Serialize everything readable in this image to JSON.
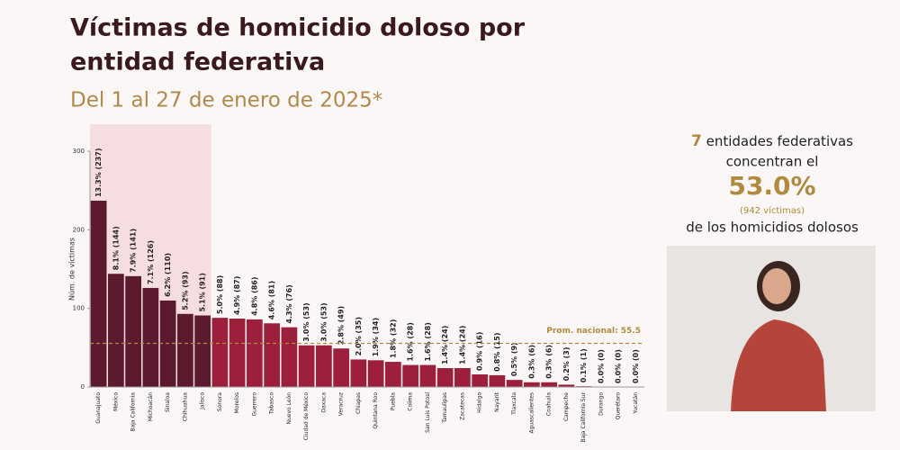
{
  "chart_data": {
    "type": "bar",
    "title_line1": "Víctimas de homicidio doloso por",
    "title_line2": "entidad federativa",
    "subtitle": "Del 1 al 27 de enero de 2025*",
    "y_label": "Núm. de víctimas",
    "categories": [
      "Guanajuato",
      "México",
      "Baja California",
      "Michoacán",
      "Sinaloa",
      "Chihuahua",
      "Jalisco",
      "Sonora",
      "Morelos",
      "Guerrero",
      "Tabasco",
      "Nuevo León",
      "Ciudad de México",
      "Oaxaca",
      "Veracruz",
      "Chiapas",
      "Quintana Roo",
      "Puebla",
      "Colima",
      "San Luis Potosí",
      "Tamaulipas",
      "Zacatecas",
      "Hidalgo",
      "Nayarit",
      "Tlaxcala",
      "Aguascalientes",
      "Coahuila",
      "Campeche",
      "Baja California Sur",
      "Durango",
      "Querétaro",
      "Yucatán"
    ],
    "values": [
      237,
      144,
      141,
      126,
      110,
      93,
      91,
      88,
      87,
      86,
      81,
      76,
      53,
      53,
      49,
      35,
      34,
      32,
      28,
      28,
      24,
      24,
      16,
      15,
      9,
      6,
      6,
      3,
      1,
      0,
      0,
      0
    ],
    "value_labels": [
      "13.3% (237)",
      "8.1% (144)",
      "7.9% (141)",
      "7.1% (126)",
      "6.2% (110)",
      "5.2% (93)",
      "5.1% (91)",
      "5.0% (88)",
      "4.9% (87)",
      "4.8% (86)",
      "4.6% (81)",
      "4.3% (76)",
      "3.0% (53)",
      "3.0% (53)",
      "2.8% (49)",
      "2.0% (35)",
      "1.9% (34)",
      "1.8% (32)",
      "1.6% (28)",
      "1.6% (28)",
      "1.4% (24)",
      "1.4% (24)",
      "0.9% (16)",
      "0.8% (15)",
      "0.5% (9)",
      "0.3% (6)",
      "0.3% (6)",
      "0.2% (3)",
      "0.1% (1)",
      "0.0% (0)",
      "0.0% (0)",
      "0.0% (0)"
    ],
    "colors": [
      "#5c1a2e",
      "#5c1a2e",
      "#5c1a2e",
      "#5c1a2e",
      "#5c1a2e",
      "#5c1a2e",
      "#5c1a2e",
      "#9c1f3c",
      "#9c1f3c",
      "#9c1f3c",
      "#9c1f3c",
      "#9c1f3c",
      "#9c1f3c",
      "#9c1f3c",
      "#9c1f3c",
      "#9c1f3c",
      "#9c1f3c",
      "#9c1f3c",
      "#9c1f3c",
      "#9c1f3c",
      "#9c1f3c",
      "#9c1f3c",
      "#9c1f3c",
      "#9c1f3c",
      "#9c1f3c",
      "#9c1f3c",
      "#9c1f3c",
      "#9c1f3c",
      "#9c1f3c",
      "#9c1f3c",
      "#9c1f3c",
      "#9c1f3c"
    ],
    "highlight_color": "#f6dde0",
    "ylim": [
      0,
      300
    ],
    "yticks": [
      0,
      100,
      200,
      300
    ],
    "average": {
      "value": 55.5,
      "label": "Prom. nacional: 55.5",
      "color": "#b08a3e"
    }
  },
  "summary": {
    "count": "7",
    "line1": "entidades federativas",
    "line2": "concentran el",
    "share": "53.0%",
    "detail": "(942 víctimas)",
    "line3": "de los homicidios dolosos"
  }
}
